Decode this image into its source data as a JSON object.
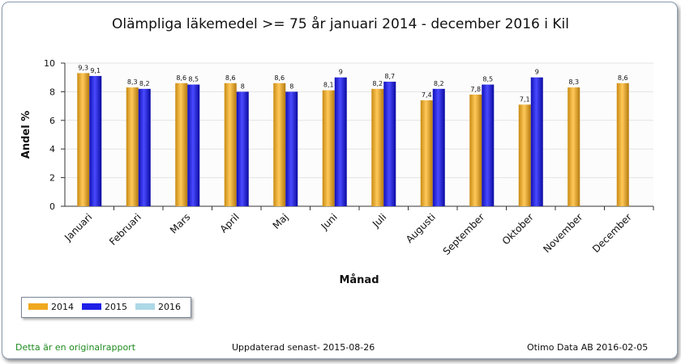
{
  "chart_data": {
    "type": "bar",
    "title": "Olämpliga läkemedel >= 75 år januari 2014 - december 2016 i Kil",
    "xlabel": "Månad",
    "ylabel": "Andel %",
    "ylim": [
      0,
      10
    ],
    "yticks": [
      "0",
      "2",
      "4",
      "6",
      "8",
      "10"
    ],
    "grid": true,
    "legend_position": "bottom-left",
    "categories": [
      "Januari",
      "Februari",
      "Mars",
      "April",
      "Maj",
      "Juni",
      "Juli",
      "Augusti",
      "September",
      "Oktober",
      "November",
      "December"
    ],
    "series": [
      {
        "name": "2014",
        "color": "#f0a81e",
        "values": [
          9.3,
          8.3,
          8.6,
          8.6,
          8.6,
          8.1,
          8.2,
          7.4,
          7.8,
          7.1,
          8.3,
          8.6
        ],
        "labels": [
          "9,3",
          "8,3",
          "8,6",
          "8,6",
          "8,6",
          "8,1",
          "8,2",
          "7,4",
          "7,8",
          "7,1",
          "8,3",
          "8,6"
        ]
      },
      {
        "name": "2015",
        "color": "#1f1fe8",
        "values": [
          9.1,
          8.2,
          8.5,
          8,
          8,
          9,
          8.7,
          8.2,
          8.5,
          9,
          null,
          null
        ],
        "labels": [
          "9,1",
          "8,2",
          "8,5",
          "8",
          "8",
          "9",
          "8,7",
          "8,2",
          "8,5",
          "9",
          "",
          ""
        ]
      },
      {
        "name": "2016",
        "color": "#add8e6",
        "values": [
          null,
          null,
          null,
          null,
          null,
          null,
          null,
          null,
          null,
          null,
          null,
          null
        ],
        "labels": [
          "",
          "",
          "",
          "",
          "",
          "",
          "",
          "",
          "",
          "",
          "",
          ""
        ]
      }
    ]
  },
  "footer": {
    "original_note": "Detta är en originalrapport",
    "updated": "Uppdaterad senast- 2015-08-26",
    "source": "Otimo Data AB 2016-02-05"
  }
}
